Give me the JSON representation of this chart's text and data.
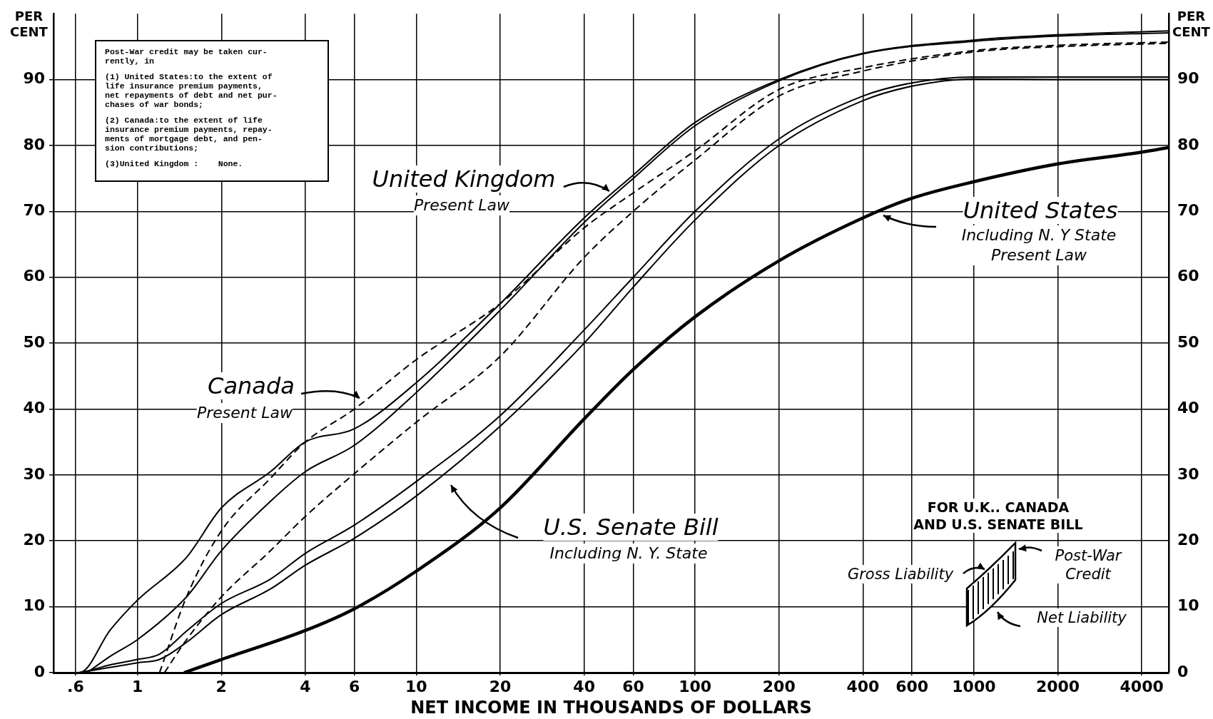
{
  "chart_data": {
    "type": "line",
    "xlabel": "NET INCOME IN THOUSANDS OF DOLLARS",
    "ylabel": "PER CENT",
    "y2label": "PER CENT",
    "log": "x",
    "xlim": [
      0.5,
      5000
    ],
    "xticks": [
      {
        "value": 0.6,
        "label": ".6"
      },
      1,
      2,
      4,
      6,
      10,
      20,
      40,
      60,
      100,
      200,
      400,
      600,
      1000,
      2000,
      4000
    ],
    "ylim": [
      0,
      100
    ],
    "yticks": [
      0,
      10,
      20,
      30,
      40,
      50,
      60,
      70,
      80,
      90
    ],
    "y2lim": [
      0,
      100
    ],
    "y2ticks": [
      0,
      10,
      20,
      30,
      40,
      50,
      60,
      70,
      80,
      90
    ],
    "grid": true,
    "legend": "bottom right",
    "series": [
      {
        "name": "United Kingdom",
        "color": "#000000",
        "line_style": "solid",
        "x": [
          0.5,
          0.62,
          0.8,
          1,
          1.5,
          2,
          3,
          4,
          6,
          10,
          20,
          40,
          60,
          100,
          200,
          400,
          1000,
          2000,
          5000
        ],
        "values": [
          0,
          0,
          6.5,
          11,
          17.5,
          25,
          30.5,
          35,
          37,
          44,
          56,
          69,
          75.5,
          83.5,
          90,
          94,
          96,
          96.8,
          97.4
        ]
      },
      {
        "color": "#000000",
        "line_style": "solid",
        "x": [
          0.66,
          0.8,
          1,
          1.5,
          2,
          3,
          4,
          6,
          10,
          20,
          40,
          60,
          100,
          200,
          400,
          1000,
          2000,
          5000
        ],
        "values": [
          0,
          2.5,
          5,
          11.5,
          18.5,
          26,
          30.5,
          34.5,
          42.5,
          55,
          68.3,
          75,
          83,
          89.8,
          93.9,
          95.8,
          96.6,
          97.1
        ]
      },
      {
        "name": "Canada",
        "color": "#000000",
        "line_style": "dashed",
        "x": [
          1.2,
          1.5,
          2,
          3,
          4,
          6,
          10,
          20,
          40,
          60,
          100,
          200,
          400,
          1000,
          2000,
          5000
        ],
        "values": [
          0,
          11.5,
          21.5,
          29.5,
          35,
          40,
          47.5,
          56,
          67.5,
          72.8,
          79.2,
          88.5,
          91.8,
          94.4,
          95.2,
          95.7
        ]
      },
      {
        "color": "#000000",
        "line_style": "dashed",
        "x": [
          1.25,
          1.5,
          2,
          3,
          4,
          6,
          10,
          20,
          40,
          60,
          100,
          200,
          400,
          1000,
          2000,
          5000
        ],
        "values": [
          0,
          5,
          11.5,
          18.5,
          23.7,
          30.2,
          38,
          48,
          63,
          70,
          77.8,
          87.5,
          91.3,
          94.2,
          95,
          95.5
        ]
      },
      {
        "name": "U.S. Senate Bill",
        "color": "#000000",
        "line_style": "solid",
        "x": [
          0.5,
          0.6,
          0.8,
          1,
          1.2,
          1.5,
          2,
          3,
          4,
          6,
          10,
          20,
          40,
          60,
          100,
          200,
          400,
          600,
          1000,
          2000,
          5000
        ],
        "values": [
          0,
          0,
          1.2,
          2,
          2.8,
          6.3,
          10.5,
          14.2,
          18.1,
          22.4,
          29,
          39,
          52,
          60,
          70,
          81,
          87.5,
          89.5,
          90.4,
          90.4,
          90.4
        ]
      },
      {
        "color": "#000000",
        "line_style": "solid",
        "x": [
          0.62,
          0.8,
          1,
          1.2,
          1.5,
          2,
          3,
          4,
          6,
          10,
          20,
          40,
          60,
          100,
          200,
          400,
          600,
          1000,
          2000,
          5000
        ],
        "values": [
          0,
          0.8,
          1.5,
          2,
          4.6,
          8.8,
          12.7,
          16.3,
          20.4,
          26.8,
          37.4,
          50,
          58.5,
          68.7,
          80,
          86.8,
          89,
          90.1,
          90,
          90
        ]
      },
      {
        "name": "United States",
        "color": "#000000",
        "line_style": "solid",
        "x": [
          1.47,
          2,
          4,
          6,
          10,
          20,
          40,
          60,
          100,
          200,
          400,
          600,
          1000,
          2000,
          4000,
          5000
        ],
        "values": [
          0,
          2,
          6.4,
          9.7,
          15.4,
          25,
          38.5,
          46,
          54,
          62.5,
          69,
          72,
          74.5,
          77.2,
          79,
          79.7
        ]
      }
    ],
    "annotations": [
      "Post-War credit may be taken cur-\nrently, in",
      "(1) United States:to the extent of\nlife insurance premium payments,\nnet repayments of debt and net pur-\nchases of war bonds;",
      "(2) Canada:to the extent of life\ninsurance premium payments, repay-\nments of mortgage debt, and pen-\nsion contributions;",
      "(3)United Kingdom :    None.",
      "Present Law",
      "Present Law",
      "Including N. Y. State",
      "Including N. Y State\nPresent Law",
      "FOR U.K.. CANADA\nAND U.S. SENATE BILL",
      "Gross Liability",
      "Post-War\nCredit",
      "Net Liability"
    ]
  }
}
